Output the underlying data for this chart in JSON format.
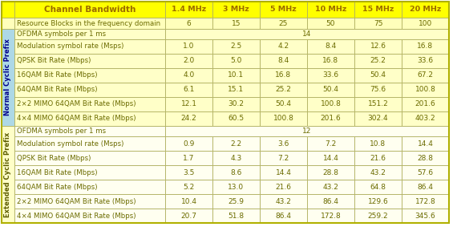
{
  "header_row": [
    "Channel Bandwidth",
    "1.4 MHz",
    "3 MHz",
    "5 MHz",
    "10 MHz",
    "15 MHz",
    "20 MHz"
  ],
  "row2": [
    "Resource Blocks in the frequency domain",
    "6",
    "15",
    "25",
    "50",
    "75",
    "100"
  ],
  "normal_prefix_label": "Normal Cyclic Prefix",
  "extended_prefix_label": "Extended Cyclic Prefix",
  "normal_rows": [
    [
      "OFDMA symbols per 1 ms",
      "14"
    ],
    [
      "Modulation symbol rate (Msps)",
      "1.0",
      "2.5",
      "4.2",
      "8.4",
      "12.6",
      "16.8"
    ],
    [
      "QPSK Bit Rate (Mbps)",
      "2.0",
      "5.0",
      "8.4",
      "16.8",
      "25.2",
      "33.6"
    ],
    [
      "16QAM Bit Rate (Mbps)",
      "4.0",
      "10.1",
      "16.8",
      "33.6",
      "50.4",
      "67.2"
    ],
    [
      "64QAM Bit Rate (Mbps)",
      "6.1",
      "15.1",
      "25.2",
      "50.4",
      "75.6",
      "100.8"
    ],
    [
      "2×2 MIMO 64QAM Bit Rate (Mbps)",
      "12.1",
      "30.2",
      "50.4",
      "100.8",
      "151.2",
      "201.6"
    ],
    [
      "4×4 MIMO 64QAM Bit Rate (Mbps)",
      "24.2",
      "60.5",
      "100.8",
      "201.6",
      "302.4",
      "403.2"
    ]
  ],
  "extended_rows": [
    [
      "OFDMA symbols per 1 ms",
      "12"
    ],
    [
      "Modulation symbol rate (Msps)",
      "0.9",
      "2.2",
      "3.6",
      "7.2",
      "10.8",
      "14.4"
    ],
    [
      "QPSK Bit Rate (Mbps)",
      "1.7",
      "4.3",
      "7.2",
      "14.4",
      "21.6",
      "28.8"
    ],
    [
      "16QAM Bit Rate (Mbps)",
      "3.5",
      "8.6",
      "14.4",
      "28.8",
      "43.2",
      "57.6"
    ],
    [
      "64QAM Bit Rate (Mbps)",
      "5.2",
      "13.0",
      "21.6",
      "43.2",
      "64.8",
      "86.4"
    ],
    [
      "2×2 MIMO 64QAM Bit Rate (Mbps)",
      "10.4",
      "25.9",
      "43.2",
      "86.4",
      "129.6",
      "172.8"
    ],
    [
      "4×4 MIMO 64QAM Bit Rate (Mbps)",
      "20.7",
      "51.8",
      "86.4",
      "172.8",
      "259.2",
      "345.6"
    ]
  ],
  "color_header_bg": "#FFFF00",
  "color_header_text": "#9B6B00",
  "color_row2_bg": "#FFFFBB",
  "color_normal_bg": "#FFFFC8",
  "color_extended_bg": "#FFFFF0",
  "color_side_normal_bg": "#ADD8E6",
  "color_side_extended_bg": "#FFFFC8",
  "color_grid": "#B0B060",
  "color_text": "#6B6B00",
  "color_outer_border": "#B0B000"
}
